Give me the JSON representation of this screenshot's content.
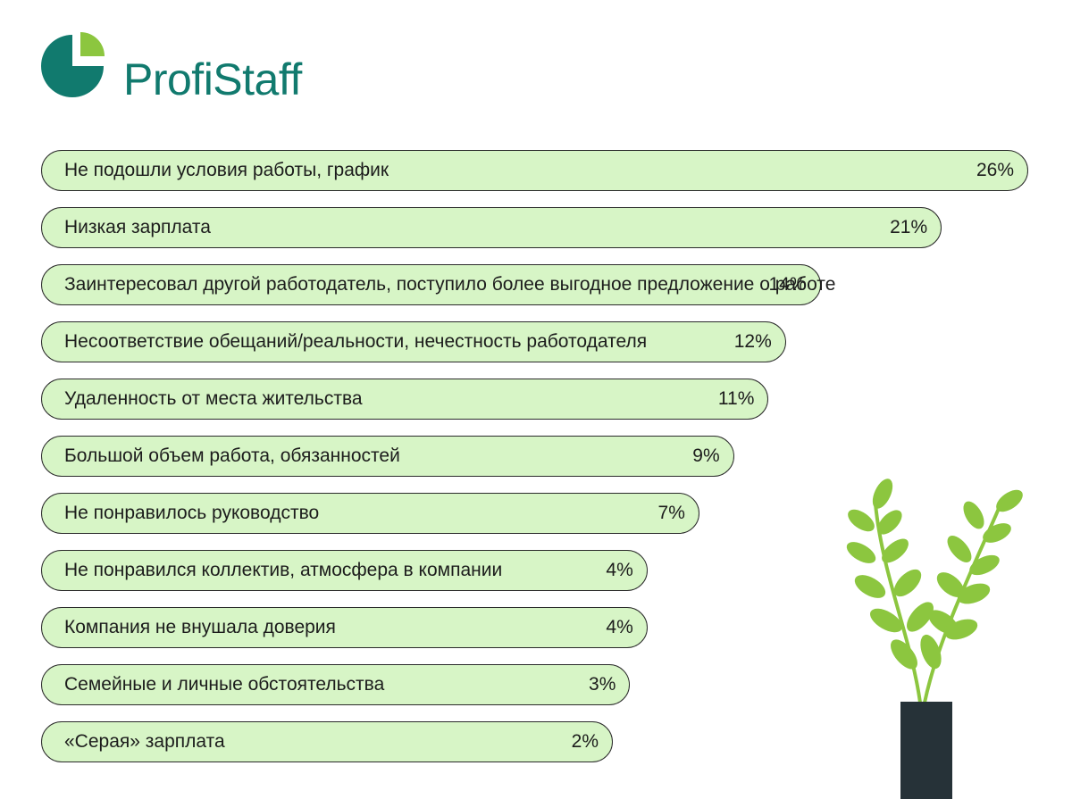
{
  "brand": {
    "name": "ProfiStaff",
    "colors": {
      "primary": "#117a6e",
      "accent": "#8cc63f"
    }
  },
  "chart_data": {
    "type": "bar",
    "orientation": "horizontal",
    "categories": [
      "Не подошли условия работы, график",
      "Низкая зарплата",
      "Заинтересовал другой работодатель, поступило более выгодное предложение о работе",
      "Несоответствие обещаний/реальности, нечестность работодателя",
      "Удаленность от места жительства",
      "Большой объем работа, обязанностей",
      "Не понравилось руководство",
      "Не понравился коллектив, атмосфера в компании",
      "Компания не внушала доверия",
      "Семейные и личные обстоятельства",
      "«Серая» зарплата"
    ],
    "values": [
      26,
      21,
      14,
      12,
      11,
      9,
      7,
      4,
      4,
      3,
      2
    ],
    "value_labels": [
      "26%",
      "21%",
      "14%",
      "12%",
      "11%",
      "9%",
      "7%",
      "4%",
      "4%",
      "3%",
      "2%"
    ],
    "colors": {
      "bar_fill": "#d7f5c6",
      "bar_border": "#2a2a2a"
    }
  },
  "decoration": {
    "plant_icon": "potted-plant-icon",
    "colors": {
      "leaf": "#8cc63f",
      "pot": "#263238"
    }
  }
}
